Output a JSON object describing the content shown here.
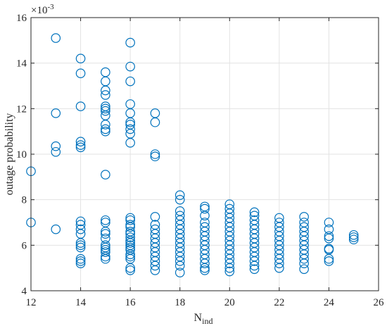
{
  "chart_data": {
    "type": "scatter",
    "title": "",
    "xlabel_main": "N",
    "xlabel_sub": "ind",
    "ylabel": "outage probability",
    "y_multiplier_base": "×10",
    "y_multiplier_exp": "-3",
    "xlim": [
      12,
      26
    ],
    "ylim": [
      4,
      16
    ],
    "xticks": [
      12,
      14,
      16,
      18,
      20,
      22,
      24,
      26
    ],
    "yticks": [
      4,
      6,
      8,
      10,
      12,
      14,
      16
    ],
    "grid": true,
    "marker": "open-circle",
    "color": "#0072bd",
    "series": [
      {
        "points": [
          [
            12,
            9.25
          ],
          [
            12,
            7.0
          ],
          [
            13,
            15.1
          ],
          [
            13,
            11.8
          ],
          [
            13,
            10.35
          ],
          [
            13,
            10.1
          ],
          [
            13,
            6.7
          ],
          [
            14,
            14.2
          ],
          [
            14,
            13.55
          ],
          [
            14,
            12.1
          ],
          [
            14,
            10.55
          ],
          [
            14,
            10.4
          ],
          [
            14,
            10.3
          ],
          [
            14,
            7.05
          ],
          [
            14,
            6.9
          ],
          [
            14,
            6.7
          ],
          [
            14,
            6.5
          ],
          [
            14,
            6.1
          ],
          [
            14,
            6.0
          ],
          [
            14,
            5.9
          ],
          [
            14,
            5.4
          ],
          [
            14,
            5.3
          ],
          [
            14,
            5.2
          ],
          [
            15,
            13.6
          ],
          [
            15,
            13.2
          ],
          [
            15,
            12.8
          ],
          [
            15,
            12.6
          ],
          [
            15,
            12.1
          ],
          [
            15,
            12.0
          ],
          [
            15,
            11.9
          ],
          [
            15,
            11.7
          ],
          [
            15,
            11.3
          ],
          [
            15,
            11.1
          ],
          [
            15,
            11.0
          ],
          [
            15,
            9.1
          ],
          [
            15,
            7.1
          ],
          [
            15,
            7.0
          ],
          [
            15,
            6.6
          ],
          [
            15,
            6.5
          ],
          [
            15,
            6.3
          ],
          [
            15,
            6.0
          ],
          [
            15,
            5.9
          ],
          [
            15,
            5.8
          ],
          [
            15,
            5.7
          ],
          [
            15,
            5.5
          ],
          [
            15,
            5.4
          ],
          [
            16,
            14.9
          ],
          [
            16,
            13.85
          ],
          [
            16,
            13.2
          ],
          [
            16,
            12.2
          ],
          [
            16,
            11.8
          ],
          [
            16,
            11.4
          ],
          [
            16,
            11.3
          ],
          [
            16,
            11.1
          ],
          [
            16,
            10.9
          ],
          [
            16,
            10.5
          ],
          [
            16,
            7.2
          ],
          [
            16,
            7.1
          ],
          [
            16,
            6.9
          ],
          [
            16,
            6.8
          ],
          [
            16,
            6.6
          ],
          [
            16,
            6.5
          ],
          [
            16,
            6.35
          ],
          [
            16,
            6.2
          ],
          [
            16,
            6.1
          ],
          [
            16,
            6.0
          ],
          [
            16,
            5.9
          ],
          [
            16,
            5.8
          ],
          [
            16,
            5.6
          ],
          [
            16,
            5.5
          ],
          [
            16,
            5.4
          ],
          [
            16,
            5.0
          ],
          [
            16,
            4.9
          ],
          [
            17,
            11.8
          ],
          [
            17,
            11.4
          ],
          [
            17,
            10.0
          ],
          [
            17,
            9.9
          ],
          [
            17,
            7.25
          ],
          [
            17,
            6.9
          ],
          [
            17,
            6.7
          ],
          [
            17,
            6.5
          ],
          [
            17,
            6.3
          ],
          [
            17,
            6.1
          ],
          [
            17,
            5.9
          ],
          [
            17,
            5.7
          ],
          [
            17,
            5.5
          ],
          [
            17,
            5.3
          ],
          [
            17,
            5.1
          ],
          [
            17,
            4.9
          ],
          [
            18,
            8.2
          ],
          [
            18,
            8.0
          ],
          [
            18,
            7.5
          ],
          [
            18,
            7.3
          ],
          [
            18,
            7.1
          ],
          [
            18,
            6.9
          ],
          [
            18,
            6.7
          ],
          [
            18,
            6.5
          ],
          [
            18,
            6.3
          ],
          [
            18,
            6.1
          ],
          [
            18,
            5.9
          ],
          [
            18,
            5.7
          ],
          [
            18,
            5.5
          ],
          [
            18,
            5.3
          ],
          [
            18,
            5.1
          ],
          [
            18,
            4.8
          ],
          [
            19,
            7.7
          ],
          [
            19,
            7.6
          ],
          [
            19,
            7.3
          ],
          [
            19,
            7.0
          ],
          [
            19,
            6.8
          ],
          [
            19,
            6.6
          ],
          [
            19,
            6.4
          ],
          [
            19,
            6.2
          ],
          [
            19,
            6.0
          ],
          [
            19,
            5.8
          ],
          [
            19,
            5.6
          ],
          [
            19,
            5.4
          ],
          [
            19,
            5.2
          ],
          [
            19,
            5.0
          ],
          [
            19,
            4.9
          ],
          [
            20,
            7.8
          ],
          [
            20,
            7.6
          ],
          [
            20,
            7.4
          ],
          [
            20,
            7.2
          ],
          [
            20,
            7.0
          ],
          [
            20,
            6.8
          ],
          [
            20,
            6.6
          ],
          [
            20,
            6.4
          ],
          [
            20,
            6.2
          ],
          [
            20,
            6.0
          ],
          [
            20,
            5.8
          ],
          [
            20,
            5.6
          ],
          [
            20,
            5.4
          ],
          [
            20,
            5.2
          ],
          [
            20,
            5.0
          ],
          [
            20,
            4.85
          ],
          [
            21,
            7.45
          ],
          [
            21,
            7.3
          ],
          [
            21,
            7.1
          ],
          [
            21,
            6.9
          ],
          [
            21,
            6.7
          ],
          [
            21,
            6.5
          ],
          [
            21,
            6.3
          ],
          [
            21,
            6.1
          ],
          [
            21,
            5.9
          ],
          [
            21,
            5.7
          ],
          [
            21,
            5.5
          ],
          [
            21,
            5.3
          ],
          [
            21,
            5.1
          ],
          [
            21,
            4.95
          ],
          [
            22,
            7.2
          ],
          [
            22,
            7.0
          ],
          [
            22,
            6.8
          ],
          [
            22,
            6.6
          ],
          [
            22,
            6.4
          ],
          [
            22,
            6.2
          ],
          [
            22,
            6.0
          ],
          [
            22,
            5.8
          ],
          [
            22,
            5.6
          ],
          [
            22,
            5.4
          ],
          [
            22,
            5.2
          ],
          [
            22,
            5.0
          ],
          [
            23,
            7.25
          ],
          [
            23,
            7.0
          ],
          [
            23,
            6.8
          ],
          [
            23,
            6.6
          ],
          [
            23,
            6.4
          ],
          [
            23,
            6.2
          ],
          [
            23,
            6.0
          ],
          [
            23,
            5.8
          ],
          [
            23,
            5.6
          ],
          [
            23,
            5.4
          ],
          [
            23,
            5.2
          ],
          [
            23,
            4.95
          ],
          [
            24,
            7.0
          ],
          [
            24,
            6.7
          ],
          [
            24,
            6.4
          ],
          [
            24,
            6.3
          ],
          [
            24,
            5.85
          ],
          [
            24,
            5.8
          ],
          [
            24,
            5.4
          ],
          [
            24,
            5.3
          ],
          [
            25,
            6.45
          ],
          [
            25,
            6.35
          ],
          [
            25,
            6.25
          ]
        ]
      }
    ]
  }
}
